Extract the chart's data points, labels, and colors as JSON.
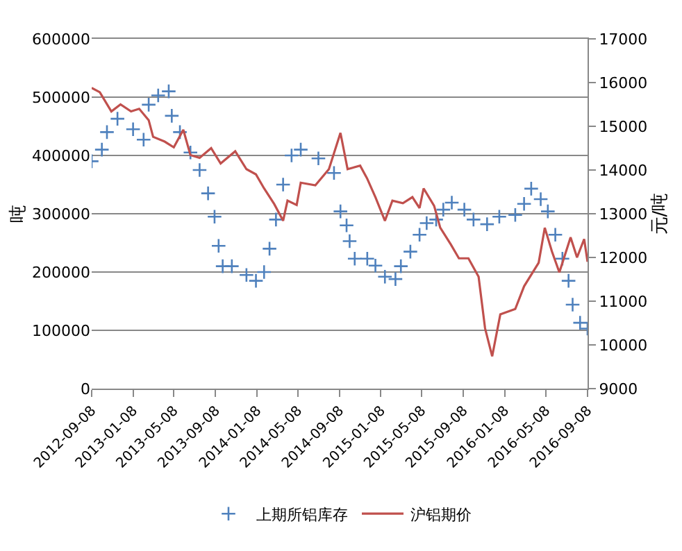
{
  "chart_data": {
    "type": "line",
    "ylabel": "吨",
    "y2label": "元/吨",
    "series": [
      {
        "name": "上期所铝库存",
        "type": "scatter",
        "marker": "cross",
        "color": "#4f81bd",
        "x": [
          "2012-09-08",
          "2012-10-08",
          "2012-10-23",
          "2012-11-23",
          "2013-01-08",
          "2013-02-08",
          "2013-02-23",
          "2013-03-23",
          "2013-04-23",
          "2013-05-02",
          "2013-05-26",
          "2013-06-26",
          "2013-07-23",
          "2013-08-17",
          "2013-09-05",
          "2013-09-17",
          "2013-09-29",
          "2013-10-26",
          "2013-12-08",
          "2014-01-05",
          "2014-01-29",
          "2014-02-14",
          "2014-03-05",
          "2014-03-26",
          "2014-04-20",
          "2014-05-17",
          "2014-07-08",
          "2014-08-23",
          "2014-09-11",
          "2014-09-29",
          "2014-10-08",
          "2014-10-23",
          "2014-11-29",
          "2014-12-23",
          "2015-01-20",
          "2015-02-20",
          "2015-03-08",
          "2015-04-05",
          "2015-05-02",
          "2015-05-23",
          "2015-06-20",
          "2015-07-11",
          "2015-08-05",
          "2015-09-11",
          "2015-10-08",
          "2015-11-17",
          "2015-12-23",
          "2016-02-08",
          "2016-03-05",
          "2016-03-26",
          "2016-04-23",
          "2016-05-14",
          "2016-06-05",
          "2016-06-26",
          "2016-07-14",
          "2016-07-26",
          "2016-08-17",
          "2016-09-08"
        ],
        "values": [
          390000,
          410000,
          440000,
          463000,
          445000,
          427000,
          487000,
          503000,
          510000,
          468000,
          440000,
          405000,
          375000,
          335000,
          295000,
          245000,
          210000,
          210000,
          195000,
          185000,
          200000,
          240000,
          290000,
          350000,
          400000,
          410000,
          395000,
          370000,
          304000,
          280000,
          253000,
          223000,
          223000,
          211000,
          192000,
          188000,
          210000,
          235000,
          264000,
          284000,
          290000,
          307000,
          319000,
          307000,
          290000,
          282000,
          295000,
          298000,
          317000,
          343000,
          325000,
          304000,
          264000,
          223000,
          185000,
          144000,
          113000,
          103000
        ]
      },
      {
        "name": "沪铝期价",
        "marker": "none",
        "axis": "y2",
        "color": "#c0504d",
        "x": [
          "2012-09-08",
          "2012-10-02",
          "2012-11-05",
          "2012-12-02",
          "2013-01-02",
          "2013-01-26",
          "2013-02-23",
          "2013-03-08",
          "2013-04-11",
          "2013-05-08",
          "2013-06-05",
          "2013-06-26",
          "2013-07-23",
          "2013-08-26",
          "2013-09-23",
          "2013-11-05",
          "2013-12-08",
          "2014-01-05",
          "2014-01-29",
          "2014-02-28",
          "2014-03-26",
          "2014-04-08",
          "2014-05-05",
          "2014-05-17",
          "2014-06-29",
          "2014-08-08",
          "2014-09-11",
          "2014-10-02",
          "2014-11-08",
          "2014-11-29",
          "2014-12-23",
          "2015-01-20",
          "2015-02-11",
          "2015-03-14",
          "2015-04-11",
          "2015-05-02",
          "2015-05-14",
          "2015-06-14",
          "2015-07-02",
          "2015-08-02",
          "2015-08-26",
          "2015-09-23",
          "2015-10-23",
          "2015-11-11",
          "2015-12-02",
          "2015-12-26",
          "2016-02-08",
          "2016-03-05",
          "2016-04-17",
          "2016-05-05",
          "2016-05-26",
          "2016-06-17",
          "2016-07-20",
          "2016-08-08",
          "2016-08-29",
          "2016-09-08"
        ],
        "values": [
          15880,
          15780,
          15340,
          15500,
          15340,
          15400,
          15140,
          14760,
          14650,
          14520,
          14920,
          14340,
          14280,
          14500,
          14150,
          14430,
          14020,
          13900,
          13580,
          13220,
          12840,
          13300,
          13200,
          13710,
          13650,
          14020,
          14850,
          14020,
          14100,
          13800,
          13380,
          12840,
          13300,
          13240,
          13380,
          13130,
          13580,
          13180,
          12680,
          12300,
          11980,
          11980,
          11560,
          10380,
          9740,
          10700,
          10820,
          11340,
          11880,
          12680,
          12140,
          11660,
          12460,
          12000,
          12420,
          11900
        ]
      }
    ],
    "xlim": [
      "2012-09-08",
      "2016-09-08"
    ],
    "xticks": [
      "2012-09-08",
      "2013-01-08",
      "2013-05-08",
      "2013-09-08",
      "2014-01-08",
      "2014-05-08",
      "2014-09-08",
      "2015-01-08",
      "2015-05-08",
      "2015-09-08",
      "2016-01-08",
      "2016-05-08",
      "2016-09-08"
    ],
    "ylim": [
      0,
      600000
    ],
    "yticks": [
      0,
      100000,
      200000,
      300000,
      400000,
      500000,
      600000
    ],
    "y2lim": [
      9000,
      17000
    ],
    "y2ticks": [
      9000,
      10000,
      11000,
      12000,
      13000,
      14000,
      15000,
      16000,
      17000
    ],
    "grid": "y",
    "legend": "bottom"
  }
}
